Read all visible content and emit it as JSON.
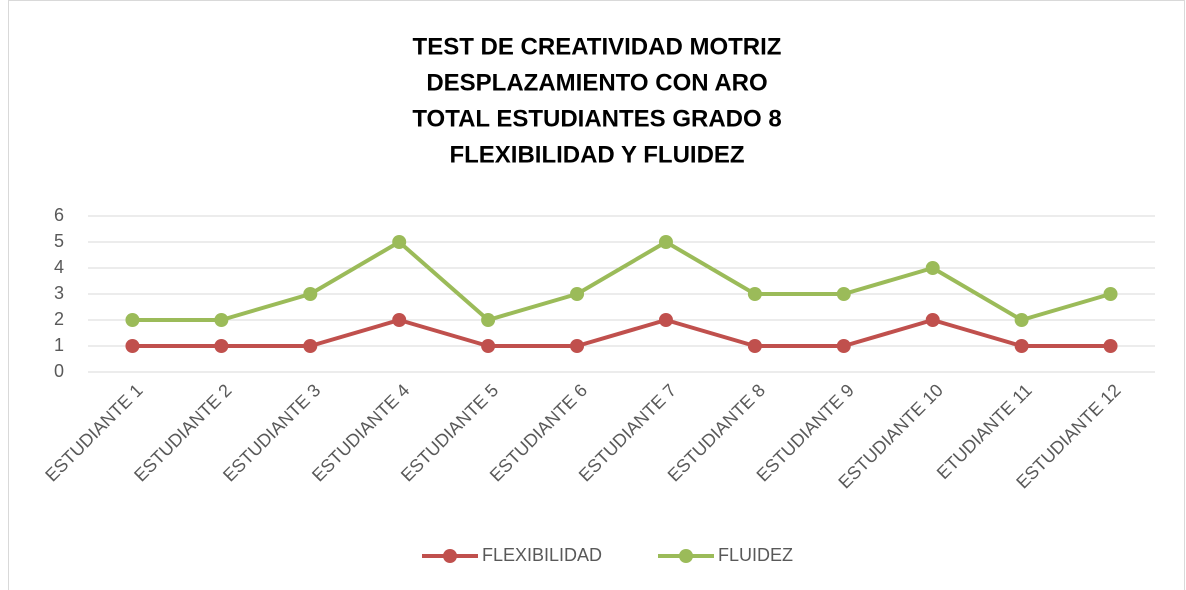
{
  "chart_data": {
    "type": "line",
    "title": [
      "TEST DE CREATIVIDAD MOTRIZ",
      "DESPLAZAMIENTO CON ARO",
      "TOTAL ESTUDIANTES GRADO 8",
      "FLEXIBILIDAD Y FLUIDEZ"
    ],
    "categories": [
      "ESTUDIANTE 1",
      "ESTUDIANTE 2",
      "ESTUDIANTE 3",
      "ESTUDIANTE 4",
      "ESTUDIANTE 5",
      "ESTUDIANTE 6",
      "ESTUDIANTE 7",
      "ESTUDIANTE 8",
      "ESTUDIANTE 9",
      "ESTUDIANTE 10",
      "ETUDIANTE 11",
      "ESTUDIANTE 12"
    ],
    "series": [
      {
        "name": "FLEXIBILIDAD",
        "color": "#c0504d",
        "values": [
          1,
          1,
          1,
          2,
          1,
          1,
          2,
          1,
          1,
          2,
          1,
          1
        ]
      },
      {
        "name": "FLUIDEZ",
        "color": "#9bbb59",
        "values": [
          2,
          2,
          3,
          5,
          2,
          3,
          5,
          3,
          3,
          4,
          2,
          3
        ]
      }
    ],
    "ylim": [
      0,
      6
    ],
    "yticks": [
      0,
      1,
      2,
      3,
      4,
      5,
      6
    ],
    "grid": true,
    "legend": "bottom"
  }
}
